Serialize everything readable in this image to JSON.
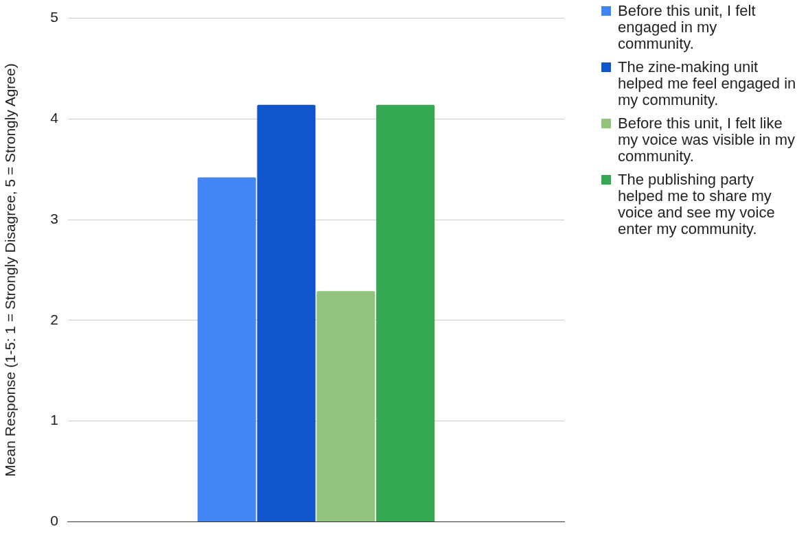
{
  "chart_data": {
    "type": "bar",
    "ylabel": "Mean Response (1-5: 1 = Strongly Disagree, 5 = Strongly Agree)",
    "categories": [
      null
    ],
    "series": [
      {
        "name": "Before this unit, I felt engaged in my community.",
        "color": "#4285f4",
        "values": [
          3.42
        ]
      },
      {
        "name": "The zine-making unit helped me feel engaged in my community.",
        "color": "#1155cc",
        "values": [
          4.14
        ]
      },
      {
        "name": "Before this unit, I felt like my voice was visible in my community.",
        "color": "#93c47d",
        "values": [
          2.29
        ]
      },
      {
        "name": "The publishing party helped me to share my voice and see my voice enter my community.",
        "color": "#34a853",
        "values": [
          4.14
        ]
      }
    ],
    "ylim": [
      0,
      5
    ],
    "yticks": [
      0,
      1,
      2,
      3,
      4,
      5
    ],
    "grid": "y",
    "legend": "right"
  }
}
